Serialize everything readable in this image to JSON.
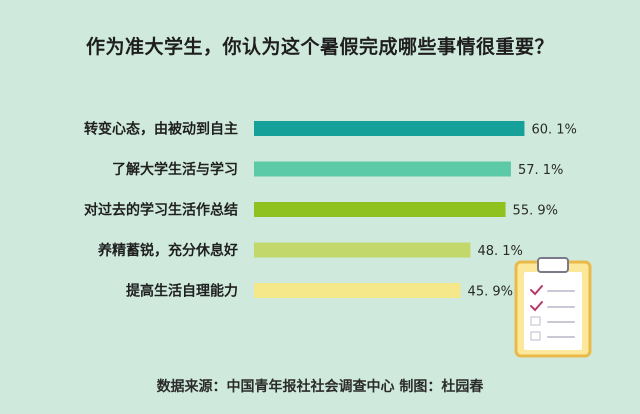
{
  "chart_data": {
    "type": "bar",
    "orientation": "horizontal",
    "title": "作为准大学生，你认为这个暑假完成哪些事情很重要？",
    "categories": [
      "转变心态，由被动到自主",
      "了解大学生活与学习",
      "对过去的学习生活作总结",
      "养精蓄锐，充分休息好",
      "提高生活自理能力"
    ],
    "values": [
      60.1,
      57.1,
      55.9,
      48.1,
      45.9
    ],
    "value_labels": [
      "60. 1%",
      "57. 1%",
      "55. 9%",
      "48. 1%",
      "45. 9%"
    ],
    "unit": "%",
    "colors": [
      "#15a09a",
      "#5cc9a7",
      "#8fc21f",
      "#c2d86a",
      "#f5e88b"
    ],
    "xlim": [
      0,
      66
    ],
    "grid": false,
    "legend": "none"
  },
  "footer": "数据来源：中国青年报社社会调查中心    制图：杜园春",
  "illustration": "clipboard-checklist-icon"
}
